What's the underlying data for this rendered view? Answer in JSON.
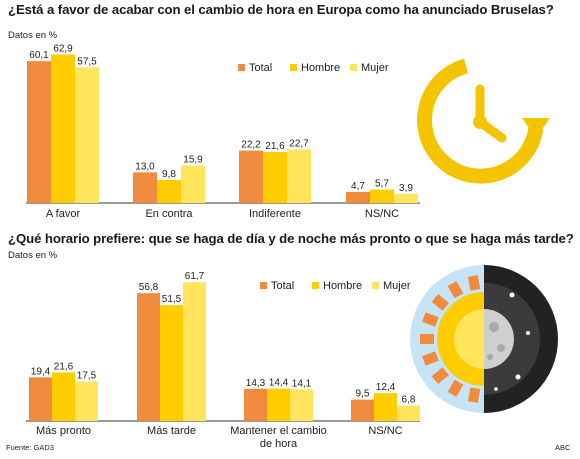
{
  "colors": {
    "total": "#f08a3c",
    "hombre": "#ffcc00",
    "mujer": "#ffe45c",
    "clock": "#f5c400",
    "axis": "#333333"
  },
  "chart_data": [
    {
      "type": "bar",
      "title": "¿Está a favor de acabar con el cambio de hora en Europa como ha anunciado Bruselas?",
      "ylabel": "Datos en %",
      "categories": [
        "A favor",
        "En contra",
        "Indiferente",
        "NS/NC"
      ],
      "value_labels": [
        [
          "60,1",
          "62,9",
          "57,5"
        ],
        [
          "13,0",
          "9,8",
          "15,9"
        ],
        [
          "22,2",
          "21,6",
          "22,7"
        ],
        [
          "4,7",
          "5,7",
          "3,9"
        ]
      ],
      "series": [
        {
          "name": "Total",
          "values": [
            60.1,
            13.0,
            22.2,
            4.7
          ]
        },
        {
          "name": "Hombre",
          "values": [
            62.9,
            9.8,
            21.6,
            5.7
          ]
        },
        {
          "name": "Mujer",
          "values": [
            57.5,
            15.9,
            22.7,
            3.9
          ]
        }
      ],
      "legend_position": "top-right",
      "grid": false
    },
    {
      "type": "bar",
      "title": "¿Qué horario prefiere: que se haga de día y de noche más pronto o que se haga más tarde?",
      "ylabel": "Datos en %",
      "categories": [
        [
          "Más pronto"
        ],
        [
          "Más tarde"
        ],
        [
          "Mantener el cambio",
          "de hora"
        ],
        [
          "NS/NC"
        ]
      ],
      "value_labels": [
        [
          "19,4",
          "21,6",
          "17,5"
        ],
        [
          "56,8",
          "51,5",
          "61,7"
        ],
        [
          "14,3",
          "14,4",
          "14,1"
        ],
        [
          "9,5",
          "12,4",
          "6,8"
        ]
      ],
      "series": [
        {
          "name": "Total",
          "values": [
            19.4,
            56.8,
            14.3,
            9.5
          ]
        },
        {
          "name": "Hombre",
          "values": [
            21.6,
            51.5,
            14.4,
            12.4
          ]
        },
        {
          "name": "Mujer",
          "values": [
            17.5,
            61.7,
            14.1,
            6.8
          ]
        }
      ],
      "legend_position": "top-right",
      "grid": false
    }
  ],
  "footer": {
    "source": "Fuente: GAD3",
    "credit": "ABC"
  }
}
